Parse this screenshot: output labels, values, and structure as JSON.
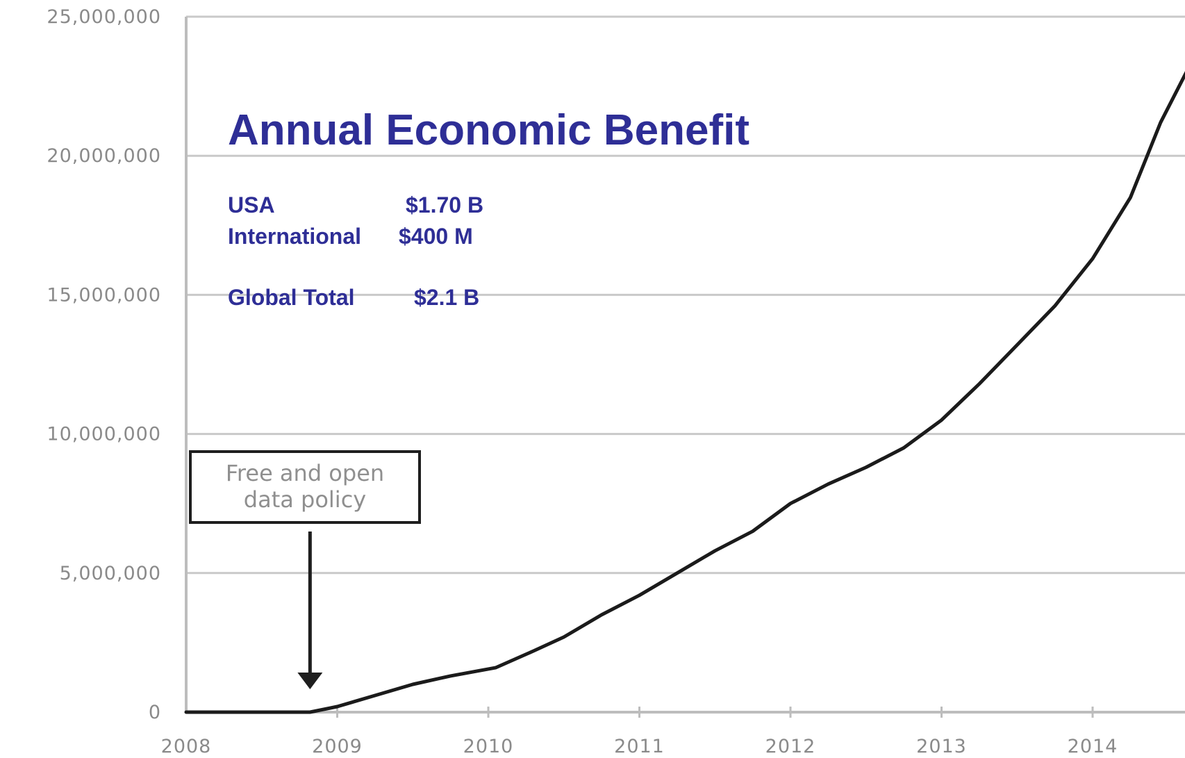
{
  "chart_data": {
    "type": "line",
    "title": "",
    "xlabel": "",
    "ylabel": "",
    "xlim": [
      2008,
      2014.62
    ],
    "ylim": [
      0,
      25000000
    ],
    "grid": true,
    "x_ticks": [
      "2008",
      "2009",
      "2010",
      "2011",
      "2012",
      "2013",
      "2014"
    ],
    "y_ticks": [
      "0",
      "5,000,000",
      "10,000,000",
      "15,000,000",
      "20,000,000",
      "25,000,000"
    ],
    "series": [
      {
        "name": "",
        "x": [
          2008.0,
          2008.5,
          2008.82,
          2009.0,
          2009.25,
          2009.5,
          2009.75,
          2010.05,
          2010.3,
          2010.5,
          2010.75,
          2011.0,
          2011.25,
          2011.5,
          2011.75,
          2012.0,
          2012.25,
          2012.5,
          2012.75,
          2013.0,
          2013.25,
          2013.5,
          2013.75,
          2014.0,
          2014.25,
          2014.45,
          2014.62
        ],
        "y": [
          0,
          0,
          0,
          200000,
          600000,
          1000000,
          1300000,
          1600000,
          2200000,
          2700000,
          3500000,
          4200000,
          5000000,
          5800000,
          6500000,
          7500000,
          8200000,
          8800000,
          9500000,
          10500000,
          11800000,
          13200000,
          14600000,
          16300000,
          18500000,
          21200000,
          23000000
        ]
      }
    ]
  },
  "overlay": {
    "title": "Annual Economic Benefit",
    "rows": [
      {
        "label": "USA",
        "value": "$1.70 B"
      },
      {
        "label": "International",
        "value": "$400 M"
      },
      {
        "label": "Global Total",
        "value": "$2.1 B"
      }
    ]
  },
  "annotation": {
    "line1": "Free and open",
    "line2": "data policy",
    "x": 2008.82
  },
  "colors": {
    "title": "#2e2e96",
    "line": "#1b1b1b",
    "grid": "#c9c9c9",
    "tick_text": "#8a8a8a"
  }
}
